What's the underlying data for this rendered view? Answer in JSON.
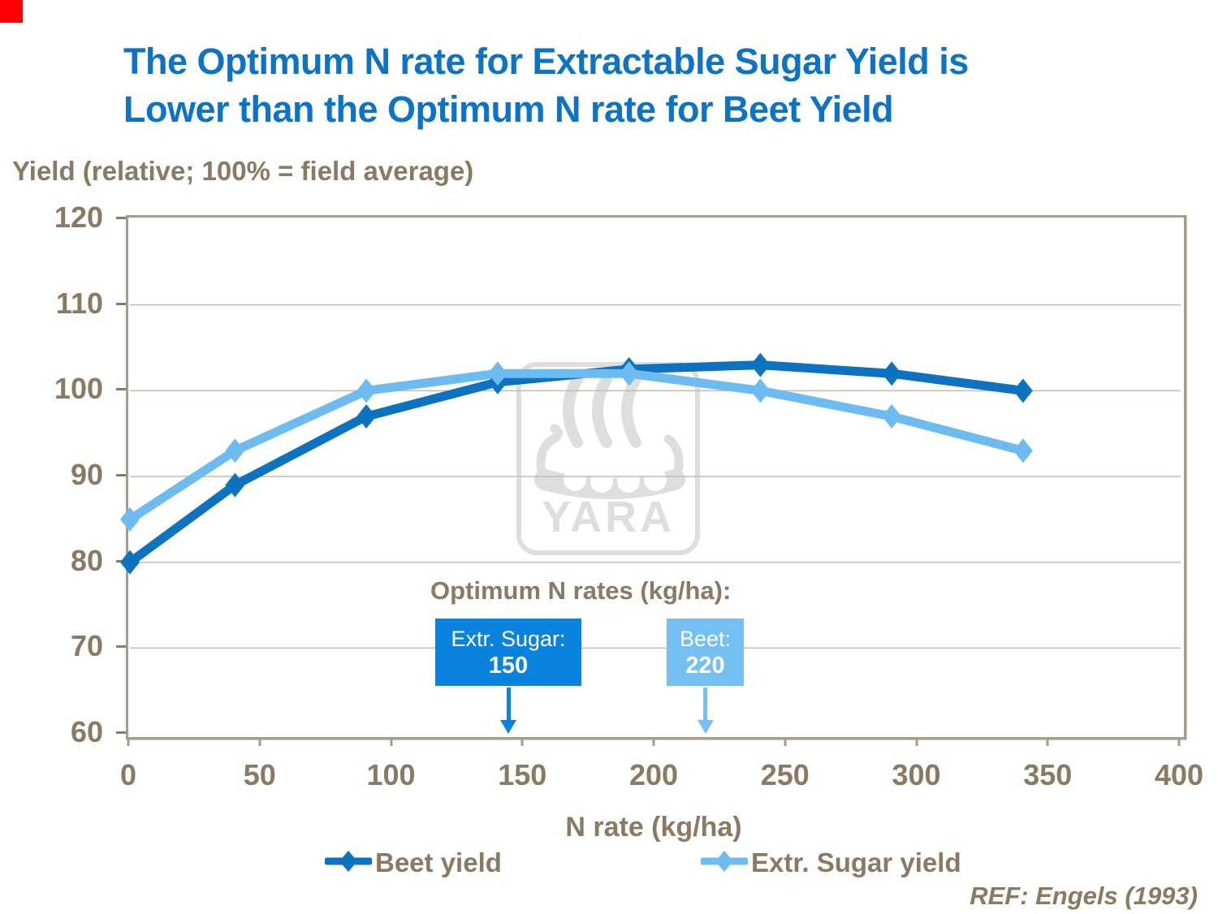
{
  "slide": {
    "title_line1": "The Optimum N rate for Extractable Sugar Yield is",
    "title_line2": "Lower than the Optimum N rate for Beet Yield",
    "ref": "REF: Engels (1993)",
    "watermark_text": "YARA",
    "accent_square_color": "#fe0000"
  },
  "chart_data": {
    "type": "line",
    "x": [
      0,
      40,
      90,
      140,
      190,
      240,
      290,
      340
    ],
    "series": [
      {
        "name": "Beet yield",
        "color": "#0d72c0",
        "values": [
          80,
          89,
          97,
          101,
          102.5,
          103,
          102,
          100
        ]
      },
      {
        "name": "Extr. Sugar yield",
        "color": "#6cbcf2",
        "values": [
          85,
          93,
          100,
          102,
          102,
          100,
          97,
          93
        ]
      }
    ],
    "xlabel": "N rate (kg/ha)",
    "ylabel": "Yield (relative; 100% = field average)",
    "xlim": [
      0,
      400
    ],
    "ylim": [
      60,
      120
    ],
    "xticks": [
      0,
      50,
      100,
      150,
      200,
      250,
      300,
      350,
      400
    ],
    "yticks": [
      120,
      110,
      100,
      90,
      80,
      70,
      60
    ],
    "grid": "horizontal-10-units",
    "legend_position": "bottom"
  },
  "annotations": {
    "heading": "Optimum N rates (kg/ha):",
    "boxes": [
      {
        "label": "Extr. Sugar:",
        "value": "150",
        "color": "#0a83df"
      },
      {
        "label": "Beet:",
        "value": "220",
        "color": "#74c0f2"
      }
    ]
  },
  "colors": {
    "title_blue": "#0d73c6",
    "axis_text_brown": "#8a7963",
    "gridline": "#c6bbaa",
    "frame": "#a69c8a",
    "watermark_gray": "#dedede"
  }
}
